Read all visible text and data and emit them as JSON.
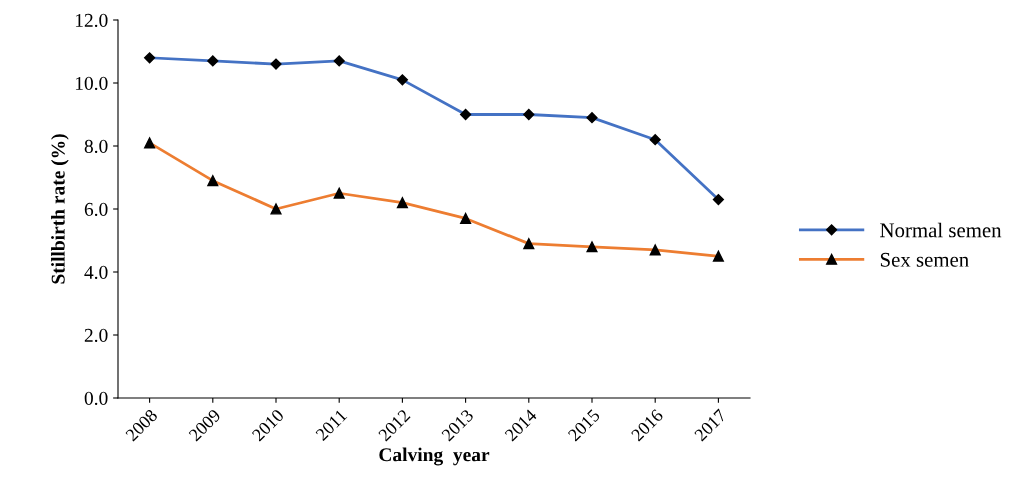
{
  "chart_data": {
    "type": "line",
    "xlabel": "Calving  year",
    "ylabel": "Stillbirth rate (%)",
    "categories": [
      "2008",
      "2009",
      "2010",
      "2011",
      "2012",
      "2013",
      "2014",
      "2015",
      "2016",
      "2017"
    ],
    "series": [
      {
        "name": "Normal semen",
        "color": "#4472c4",
        "marker": "diamond",
        "values": [
          10.8,
          10.7,
          10.6,
          10.7,
          10.1,
          9.0,
          9.0,
          8.9,
          8.2,
          6.3
        ]
      },
      {
        "name": "Sex semen",
        "color": "#ed7d31",
        "marker": "triangle",
        "values": [
          8.1,
          6.9,
          6.0,
          6.5,
          6.2,
          5.7,
          4.9,
          4.8,
          4.7,
          4.5
        ]
      }
    ],
    "ylim": [
      0,
      12
    ],
    "yticks": [
      {
        "value": 0,
        "label": "0.0"
      },
      {
        "value": 2,
        "label": "2.0"
      },
      {
        "value": 4,
        "label": "4.0"
      },
      {
        "value": 6,
        "label": "6.0"
      },
      {
        "value": 8,
        "label": "8.0"
      },
      {
        "value": 10,
        "label": "10.0"
      },
      {
        "value": 12,
        "label": "12.0"
      }
    ],
    "grid": false,
    "legend": "right",
    "line_style": "solid"
  }
}
